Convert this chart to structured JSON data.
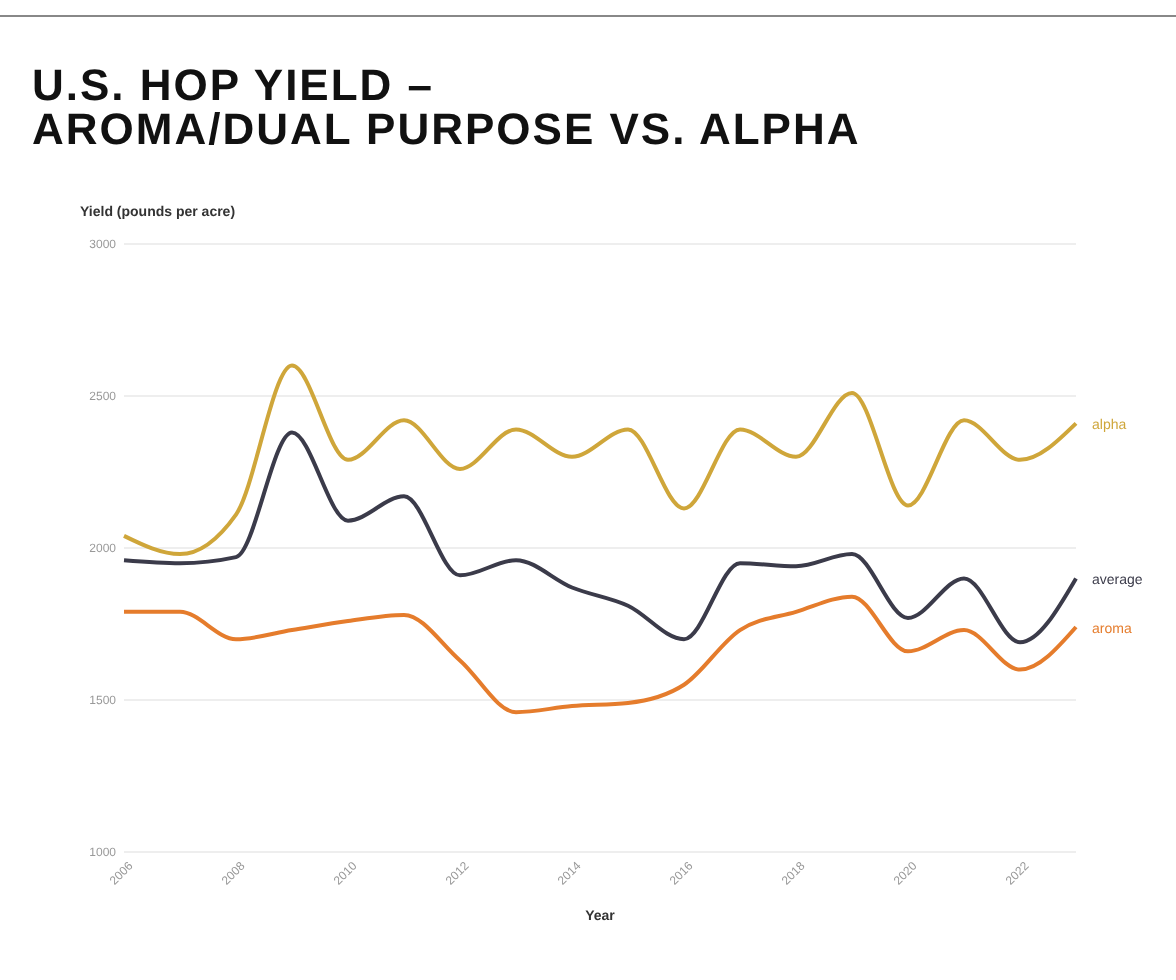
{
  "chart_data": {
    "type": "line",
    "title": "U.S. HOP YIELD – AROMA/DUAL PURPOSE VS. ALPHA",
    "xlabel": "Year",
    "ylabel": "Yield (pounds per acre)",
    "x": [
      2006,
      2007,
      2008,
      2009,
      2010,
      2011,
      2012,
      2013,
      2014,
      2015,
      2016,
      2017,
      2018,
      2019,
      2020,
      2021,
      2022,
      2023
    ],
    "xlim": [
      2006,
      2023
    ],
    "xticks": [
      2006,
      2008,
      2010,
      2012,
      2014,
      2016,
      2018,
      2020,
      2022
    ],
    "ylim": [
      1000,
      3000
    ],
    "yticks": [
      1000,
      1500,
      2000,
      2500,
      3000
    ],
    "grid": "y",
    "legend": false,
    "line_style": "solid",
    "marker": "none",
    "series": [
      {
        "name": "alpha",
        "color": "#cfa63a",
        "values": [
          2040,
          1980,
          2110,
          2600,
          2290,
          2420,
          2260,
          2390,
          2300,
          2390,
          2130,
          2390,
          2300,
          2510,
          2140,
          2420,
          2290,
          2410
        ]
      },
      {
        "name": "average",
        "color": "#3b3b4a",
        "values": [
          1960,
          1950,
          1970,
          2380,
          2090,
          2170,
          1910,
          1960,
          1870,
          1810,
          1700,
          1950,
          1940,
          1980,
          1770,
          1900,
          1690,
          1900
        ]
      },
      {
        "name": "aroma",
        "color": "#e57c2c",
        "values": [
          1790,
          1790,
          1700,
          1730,
          1760,
          1780,
          1630,
          1460,
          1480,
          1490,
          1550,
          1730,
          1790,
          1840,
          1660,
          1730,
          1600,
          1740
        ]
      }
    ]
  }
}
